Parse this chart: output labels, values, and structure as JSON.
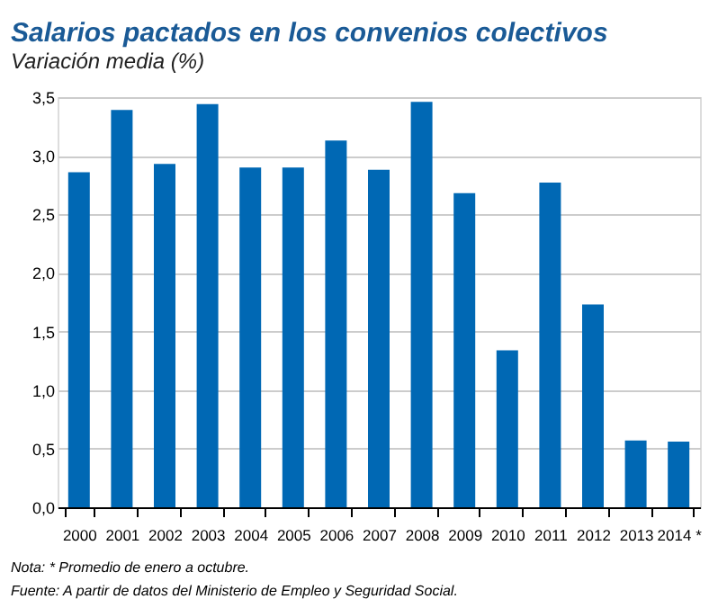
{
  "chart_data": {
    "type": "bar",
    "title": "Salarios pactados en los convenios colectivos",
    "subtitle": "Variación media (%)",
    "categories": [
      "2000",
      "2001",
      "2002",
      "2003",
      "2004",
      "2005",
      "2006",
      "2007",
      "2008",
      "2009",
      "2010",
      "2011",
      "2012",
      "2013",
      "2014 *"
    ],
    "values": [
      2.86,
      3.39,
      2.93,
      3.44,
      2.9,
      2.9,
      3.13,
      2.88,
      3.46,
      2.68,
      1.34,
      2.77,
      1.73,
      0.57,
      0.56
    ],
    "color": "#0068b4",
    "ylim": [
      0,
      3.5
    ],
    "yticks": [
      {
        "value": 0,
        "label": "0,0"
      },
      {
        "value": 0.5,
        "label": "0,5"
      },
      {
        "value": 1,
        "label": "1,0"
      },
      {
        "value": 1.5,
        "label": "1,5"
      },
      {
        "value": 2,
        "label": "2,0"
      },
      {
        "value": 2.5,
        "label": "2,5"
      },
      {
        "value": 3,
        "label": "3,0"
      },
      {
        "value": 3.5,
        "label": "3,5"
      }
    ],
    "grid": "y",
    "annotations": [
      "Nota: * Promedio de enero a octubre.",
      "Fuente: A partir de datos del Ministerio de Empleo y Seguridad Social."
    ]
  }
}
